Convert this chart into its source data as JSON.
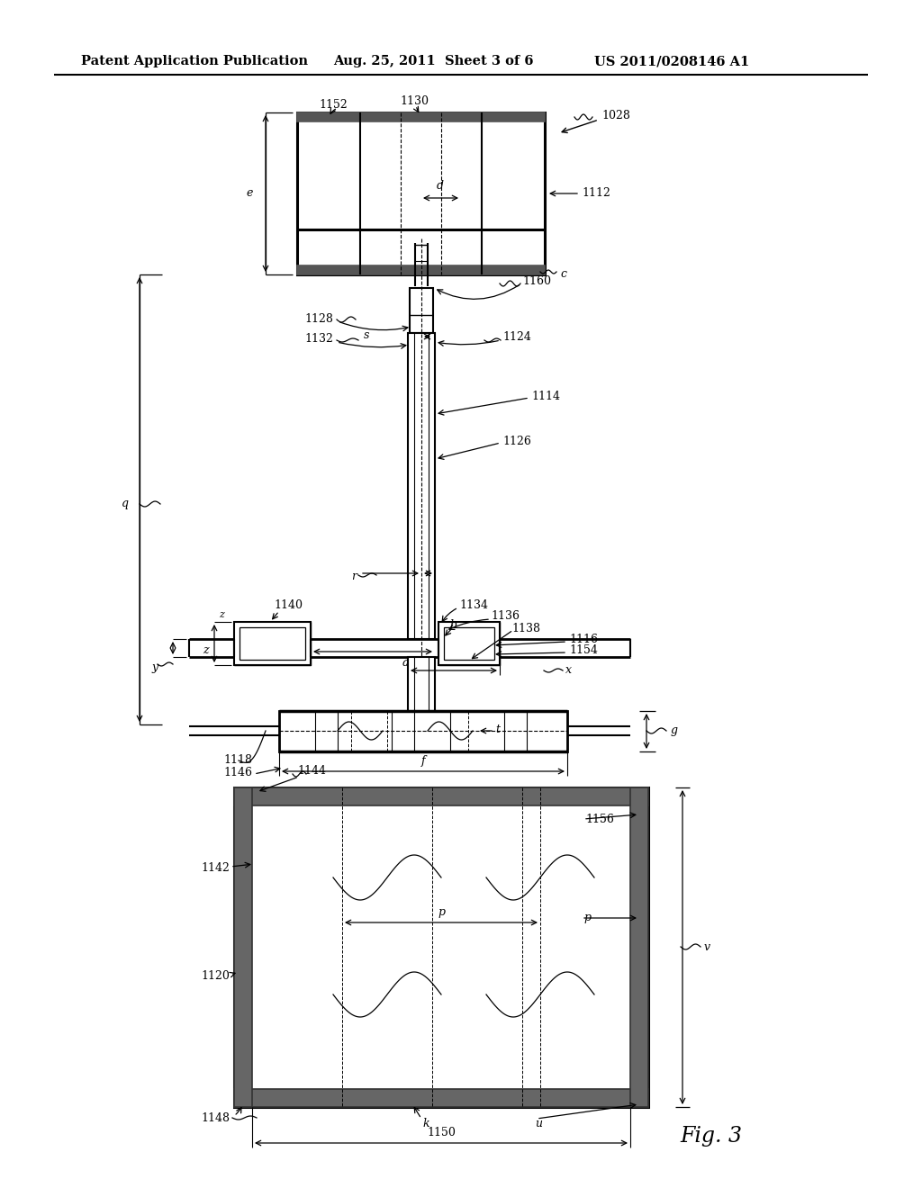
{
  "bg_color": "#ffffff",
  "line_color": "#000000",
  "header_text": "Patent Application Publication",
  "header_date": "Aug. 25, 2011  Sheet 3 of 6",
  "header_patent": "US 2011/0208146 A1",
  "fig_label": "Fig. 3"
}
